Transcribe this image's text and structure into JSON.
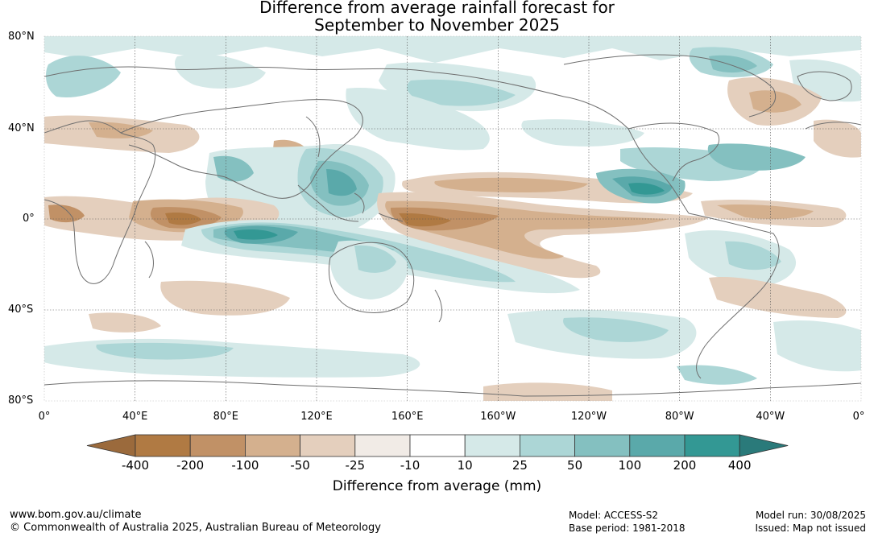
{
  "title": {
    "line1": "Difference from average rainfall forecast for",
    "line2": "September to November 2025"
  },
  "axes": {
    "y_labels": [
      "80°N",
      "40°N",
      "0°",
      "40°S",
      "80°S"
    ],
    "x_labels": [
      "0°",
      "40°E",
      "80°E",
      "120°E",
      "160°E",
      "160°W",
      "120°W",
      "80°W",
      "40°W",
      "0°"
    ]
  },
  "legend": {
    "title": "Difference from average (mm)",
    "ticks": [
      "-400",
      "-200",
      "-100",
      "-50",
      "-25",
      "-10",
      "10",
      "25",
      "50",
      "100",
      "200",
      "400"
    ],
    "colors": [
      "#9b6a3c",
      "#b07a43",
      "#c19166",
      "#d4b08e",
      "#e4cfbd",
      "#f1ebe6",
      "#ffffff",
      "#d5e9e8",
      "#acd6d6",
      "#84c0c0",
      "#5aa9aa",
      "#339894",
      "#2a7a7a"
    ]
  },
  "footer": {
    "website": "www.bom.gov.au/climate",
    "copyright": "© Commonwealth of Australia 2025, Australian Bureau of Meteorology",
    "model": "Model: ACCESS-S2",
    "base_period": "Base period: 1981-2018",
    "model_run": "Model run: 30/08/2025",
    "issued": "Issued: Map not issued"
  }
}
